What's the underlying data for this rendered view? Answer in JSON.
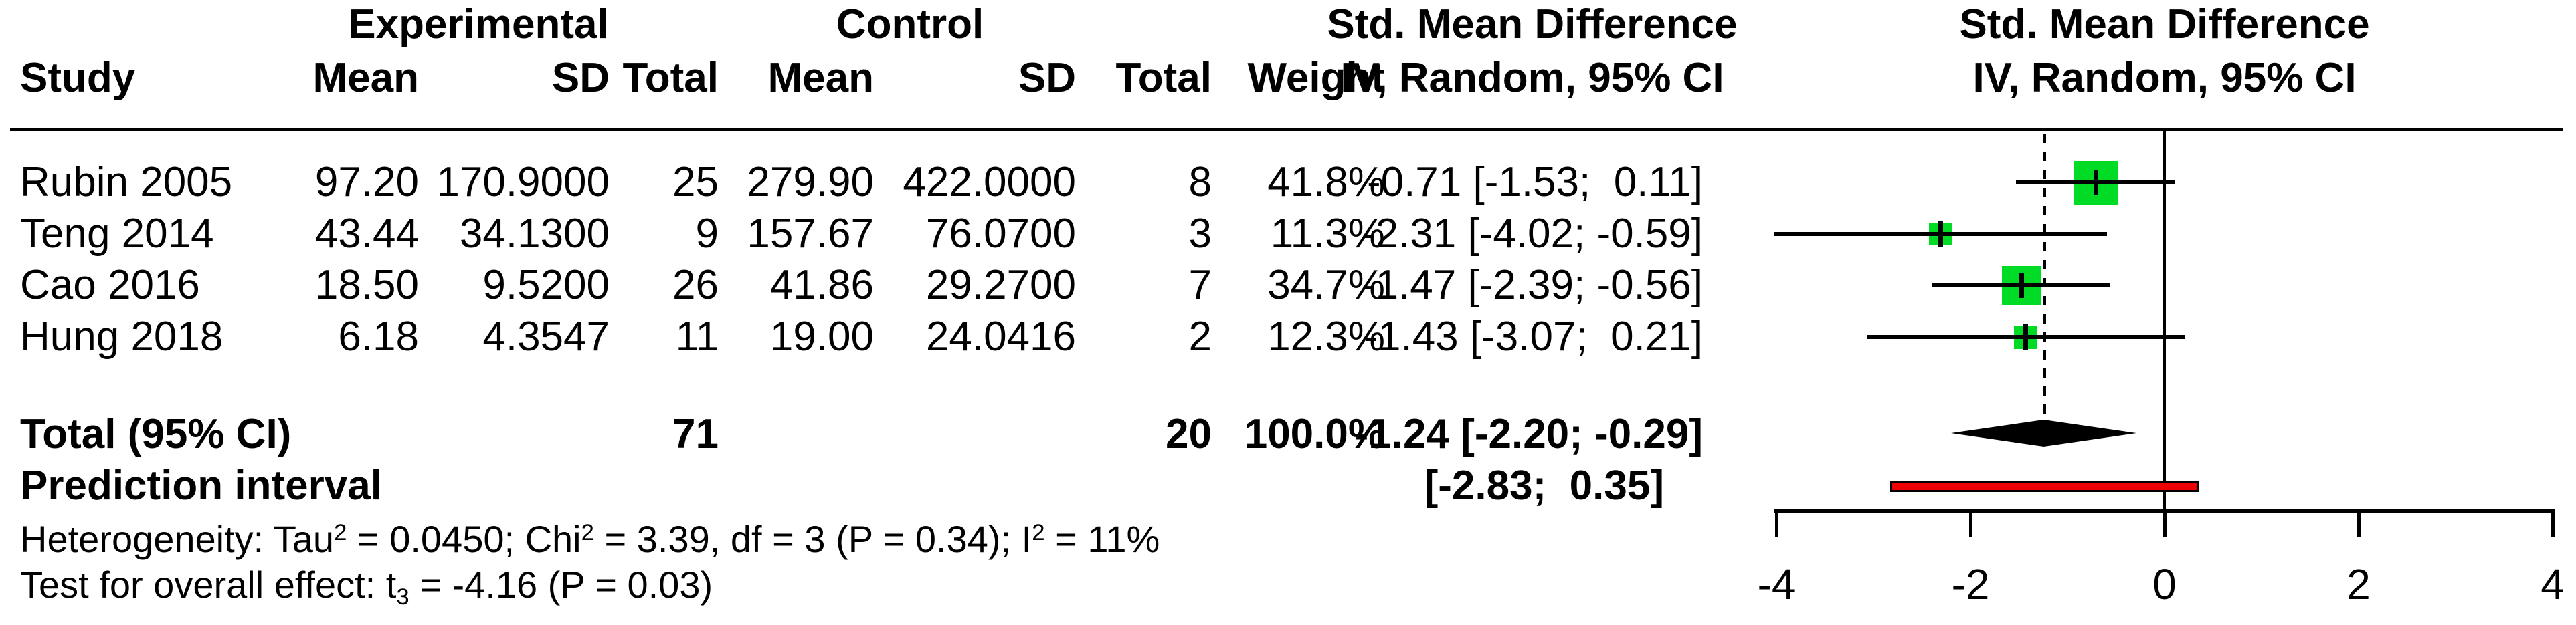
{
  "header": {
    "group_experimental": "Experimental",
    "group_control": "Control",
    "smd_left": "Std. Mean Difference",
    "smd_right": "Std. Mean Difference",
    "col_study": "Study",
    "col_mean_exp": "Mean",
    "col_sd_exp": "SD",
    "col_total_exp": "Total",
    "col_mean_ctrl": "Mean",
    "col_sd_ctrl": "SD",
    "col_total_ctrl": "Total",
    "col_weight": "Weight",
    "col_ci_left": "IV, Random, 95% CI",
    "col_ci_right": "IV, Random, 95% CI"
  },
  "rows": [
    {
      "study": "Rubin 2005",
      "mean_e": "97.20",
      "sd_e": "170.9000",
      "n_e": "25",
      "mean_c": "279.90",
      "sd_c": "422.0000",
      "n_c": "8",
      "weight": "41.8%",
      "ci": "-0.71 [-1.53;  0.11]"
    },
    {
      "study": "Teng 2014",
      "mean_e": "43.44",
      "sd_e": "34.1300",
      "n_e": "9",
      "mean_c": "157.67",
      "sd_c": "76.0700",
      "n_c": "3",
      "weight": "11.3%",
      "ci": "-2.31 [-4.02; -0.59]"
    },
    {
      "study": "Cao 2016",
      "mean_e": "18.50",
      "sd_e": "9.5200",
      "n_e": "26",
      "mean_c": "41.86",
      "sd_c": "29.2700",
      "n_c": "7",
      "weight": "34.7%",
      "ci": "-1.47 [-2.39; -0.56]"
    },
    {
      "study": "Hung 2018",
      "mean_e": "6.18",
      "sd_e": "4.3547",
      "n_e": "11",
      "mean_c": "19.00",
      "sd_c": "24.0416",
      "n_c": "2",
      "weight": "12.3%",
      "ci": "-1.43 [-3.07;  0.21]"
    }
  ],
  "total_row": {
    "label": "Total (95% CI)",
    "n_e": "71",
    "n_c": "20",
    "weight": "100.0%",
    "ci": "-1.24 [-2.20; -0.29]"
  },
  "prediction_row": {
    "label": "Prediction interval",
    "ci": "[-2.83;  0.35]"
  },
  "footnotes": {
    "heterogeneity": [
      {
        "t": "Heterogeneity: Tau"
      },
      {
        "t": "2",
        "sup": true
      },
      {
        "t": " = 0.0450; Chi"
      },
      {
        "t": "2",
        "sup": true
      },
      {
        "t": " = 3.39, df = 3 (P = 0.34); I"
      },
      {
        "t": "2",
        "sup": true
      },
      {
        "t": " = 11%"
      }
    ],
    "overall_test": [
      {
        "t": "Test for overall effect: t"
      },
      {
        "t": "3",
        "sub": true
      },
      {
        "t": " = -4.16 (P = 0.03)"
      }
    ]
  },
  "colors": {
    "marker_green": "#00DC26",
    "prediction_red": "#EE0000",
    "line_black": "#000000"
  },
  "chart_data": {
    "type": "forest",
    "title": "Std. Mean Difference",
    "model_label": "IV, Random, 95% CI",
    "studies": [
      {
        "study": "Rubin 2005",
        "exp_mean": 97.2,
        "exp_sd": 170.9,
        "exp_total": 25,
        "ctrl_mean": 279.9,
        "ctrl_sd": 422.0,
        "ctrl_total": 8,
        "weight_pct": 41.8,
        "smd": -0.71,
        "ci_lower": -1.53,
        "ci_upper": 0.11
      },
      {
        "study": "Teng 2014",
        "exp_mean": 43.44,
        "exp_sd": 34.13,
        "exp_total": 9,
        "ctrl_mean": 157.67,
        "ctrl_sd": 76.07,
        "ctrl_total": 3,
        "weight_pct": 11.3,
        "smd": -2.31,
        "ci_lower": -4.02,
        "ci_upper": -0.59
      },
      {
        "study": "Cao 2016",
        "exp_mean": 18.5,
        "exp_sd": 9.52,
        "exp_total": 26,
        "ctrl_mean": 41.86,
        "ctrl_sd": 29.27,
        "ctrl_total": 7,
        "weight_pct": 34.7,
        "smd": -1.47,
        "ci_lower": -2.39,
        "ci_upper": -0.56
      },
      {
        "study": "Hung 2018",
        "exp_mean": 6.18,
        "exp_sd": 4.3547,
        "exp_total": 11,
        "ctrl_mean": 19.0,
        "ctrl_sd": 24.0416,
        "ctrl_total": 2,
        "weight_pct": 12.3,
        "smd": -1.43,
        "ci_lower": -3.07,
        "ci_upper": 0.21
      }
    ],
    "total": {
      "label": "Total (95% CI)",
      "exp_total": 71,
      "ctrl_total": 20,
      "weight_pct": 100.0,
      "smd": -1.24,
      "ci_lower": -2.2,
      "ci_upper": -0.29
    },
    "prediction_interval": {
      "lower": -2.83,
      "upper": 0.35
    },
    "heterogeneity": {
      "tau2": 0.045,
      "chi2": 3.39,
      "df": 3,
      "p": 0.34,
      "i2_pct": 11
    },
    "overall_effect_test": {
      "statistic": "t3",
      "value": -4.16,
      "p": 0.03
    },
    "xaxis": {
      "ticks": [
        -4,
        -2,
        0,
        2,
        4
      ],
      "range": [
        -4,
        4
      ]
    },
    "zero_line": 0,
    "pooled_dashed_line": -1.24,
    "legend_position": "none",
    "grid": false
  }
}
